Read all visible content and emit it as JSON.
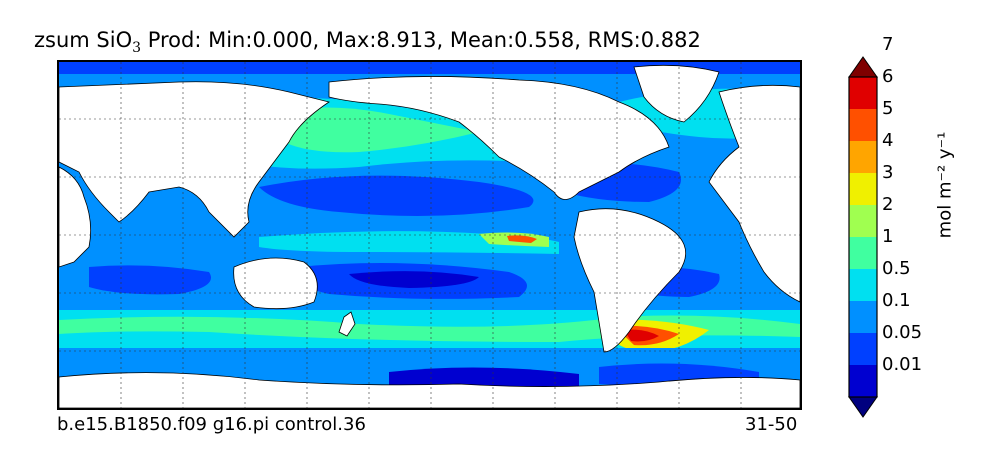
{
  "title": {
    "prefix": "zsum SiO",
    "subscript": "3",
    "rest": " Prod: Min:0.000, Max:8.913, Mean:0.558, RMS:0.882"
  },
  "footer": {
    "left": "b.e15.B1850.f09 g16.pi control.36",
    "right": "31-50"
  },
  "colorbar": {
    "units_label": "mol m⁻² y⁻¹",
    "tick_labels": [
      "0.01",
      "0.05",
      "0.1",
      "0.5",
      "1",
      "2",
      "3",
      "4",
      "5",
      "6",
      "7"
    ],
    "colors": [
      "#00007f",
      "#0000d0",
      "#0040ff",
      "#0090ff",
      "#00e0f0",
      "#40ffa0",
      "#a0ff50",
      "#f0f000",
      "#ffa500",
      "#ff5000",
      "#e00000",
      "#7f0000"
    ]
  }
}
